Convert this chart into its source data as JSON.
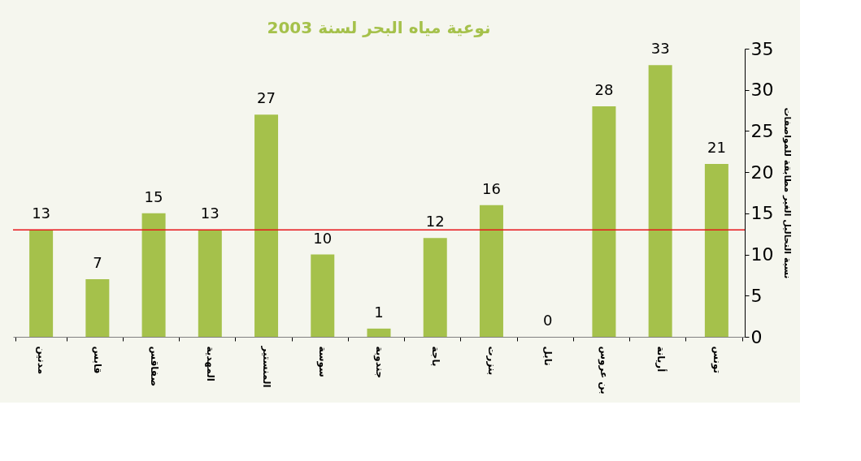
{
  "chart_data": {
    "type": "bar",
    "title": "نوعية مياه البحر لسنة 2003",
    "ylabel": "نسبة التحاليل الغير مطابقة للمواصفات",
    "categories": [
      "مدنين",
      "قابس",
      "صفاقس",
      "المهدية",
      "المنستير",
      "سوسة",
      "جندوبة",
      "باجة",
      "بنزرت",
      "نابل",
      "بن عروس",
      "أريانة",
      "تونس"
    ],
    "values": [
      13,
      7,
      15,
      13,
      27,
      10,
      1,
      12,
      16,
      0,
      28,
      33,
      21
    ],
    "color": "#a5c14b",
    "ylim": [
      0,
      35
    ],
    "yticks": [
      0,
      5,
      10,
      15,
      20,
      25,
      30,
      35
    ],
    "grid": false,
    "data_labels": true,
    "legend": false,
    "ref_lines": [
      {
        "axis": "y",
        "value": 13,
        "color": "#e8161b"
      }
    ]
  }
}
